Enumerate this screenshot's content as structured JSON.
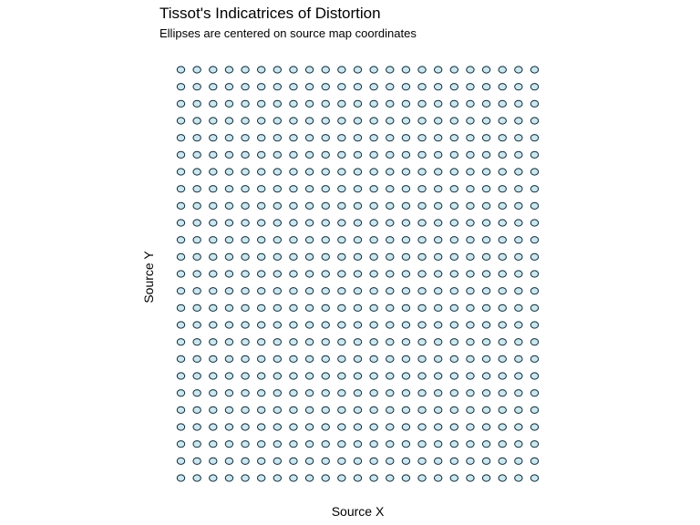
{
  "chart_data": {
    "type": "scatter",
    "title": "Tissot's Indicatrices of Distortion",
    "subtitle": "Ellipses are centered on source map coordinates",
    "xlabel": "Source X",
    "ylabel": "Source Y",
    "marker": "ellipse",
    "grid_columns": 23,
    "grid_rows": 25,
    "xlim": [
      1,
      23
    ],
    "ylim": [
      1,
      25
    ],
    "grid": false,
    "axis_ticks": false,
    "ellipse_fill": "#cde7ef",
    "ellipse_stroke": "#0a2a3a"
  }
}
